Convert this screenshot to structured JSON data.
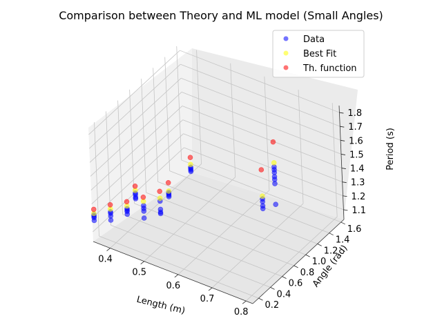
{
  "chart_data": {
    "type": "scatter",
    "projection": "3d",
    "title": "Comparison between Theory and ML model (Small Angles)",
    "xlabel": "Length (m)",
    "ylabel": "Angle (rad)",
    "zlabel": "Period (s)",
    "xlim": [
      0.35,
      0.82
    ],
    "ylim": [
      0.1,
      1.65
    ],
    "zlim": [
      1.03,
      1.85
    ],
    "xticks": [
      "0.4",
      "0.5",
      "0.6",
      "0.7",
      "0.8"
    ],
    "yticks": [
      "0.2",
      "0.4",
      "0.6",
      "0.8",
      "1.0",
      "1.2",
      "1.4",
      "1.6"
    ],
    "zticks": [
      "1.1",
      "1.2",
      "1.3",
      "1.4",
      "1.5",
      "1.6",
      "1.7",
      "1.8"
    ],
    "grid": true,
    "legend_position": "top-right",
    "series": [
      {
        "name": "Data",
        "color": "#0000ff",
        "alpha": 0.55,
        "points": [
          [
            0.35,
            0.13,
            1.2
          ],
          [
            0.35,
            0.13,
            1.17
          ],
          [
            0.35,
            0.13,
            1.19
          ],
          [
            0.35,
            0.13,
            1.21
          ],
          [
            0.4,
            0.13,
            1.28
          ],
          [
            0.4,
            0.13,
            1.25
          ],
          [
            0.4,
            0.13,
            1.27
          ],
          [
            0.4,
            0.13,
            1.22
          ],
          [
            0.45,
            0.13,
            1.35
          ],
          [
            0.45,
            0.13,
            1.31
          ],
          [
            0.45,
            0.13,
            1.33
          ],
          [
            0.45,
            0.13,
            1.34
          ],
          [
            0.5,
            0.13,
            1.42
          ],
          [
            0.5,
            0.13,
            1.38
          ],
          [
            0.5,
            0.13,
            1.4
          ],
          [
            0.5,
            0.13,
            1.33
          ],
          [
            0.55,
            0.13,
            1.5
          ],
          [
            0.55,
            0.13,
            1.44
          ],
          [
            0.55,
            0.13,
            1.42
          ],
          [
            0.55,
            0.13,
            1.41
          ],
          [
            0.4,
            0.55,
            1.25
          ],
          [
            0.4,
            0.55,
            1.24
          ],
          [
            0.4,
            0.55,
            1.22
          ],
          [
            0.4,
            0.55,
            1.21
          ],
          [
            0.5,
            0.55,
            1.35
          ],
          [
            0.5,
            0.55,
            1.34
          ],
          [
            0.5,
            0.55,
            1.33
          ],
          [
            0.5,
            0.55,
            1.32
          ],
          [
            0.78,
            0.55,
            1.57
          ],
          [
            0.78,
            0.55,
            1.55
          ],
          [
            0.78,
            0.55,
            1.52
          ],
          [
            0.78,
            0.55,
            1.5
          ],
          [
            0.45,
            1.2,
            1.23
          ],
          [
            0.45,
            1.2,
            1.22
          ],
          [
            0.45,
            1.2,
            1.21
          ],
          [
            0.45,
            1.2,
            1.2
          ],
          [
            0.7,
            1.2,
            1.47
          ],
          [
            0.7,
            1.2,
            1.45
          ],
          [
            0.7,
            1.2,
            1.43
          ],
          [
            0.7,
            1.2,
            1.4
          ],
          [
            0.7,
            1.2,
            1.38
          ],
          [
            0.7,
            1.2,
            1.35
          ],
          [
            0.7,
            1.2,
            1.2
          ]
        ]
      },
      {
        "name": "Best Fit",
        "color": "#ffff00",
        "alpha": 0.55,
        "points": [
          [
            0.35,
            0.13,
            1.22
          ],
          [
            0.4,
            0.13,
            1.3
          ],
          [
            0.45,
            0.13,
            1.37
          ],
          [
            0.5,
            0.13,
            1.45
          ],
          [
            0.55,
            0.13,
            1.52
          ],
          [
            0.4,
            0.55,
            1.27
          ],
          [
            0.5,
            0.55,
            1.36
          ],
          [
            0.78,
            0.55,
            1.59
          ],
          [
            0.45,
            1.2,
            1.25
          ],
          [
            0.7,
            1.2,
            1.5
          ]
        ]
      },
      {
        "name": "Th. function",
        "color": "#ff0000",
        "alpha": 0.55,
        "points": [
          [
            0.35,
            0.13,
            1.25
          ],
          [
            0.4,
            0.13,
            1.33
          ],
          [
            0.45,
            0.13,
            1.4
          ],
          [
            0.5,
            0.13,
            1.48
          ],
          [
            0.55,
            0.13,
            1.57
          ],
          [
            0.4,
            0.55,
            1.3
          ],
          [
            0.5,
            0.55,
            1.42
          ],
          [
            0.78,
            0.55,
            1.78
          ],
          [
            0.45,
            1.2,
            1.3
          ],
          [
            0.7,
            1.2,
            1.65
          ]
        ]
      }
    ]
  }
}
